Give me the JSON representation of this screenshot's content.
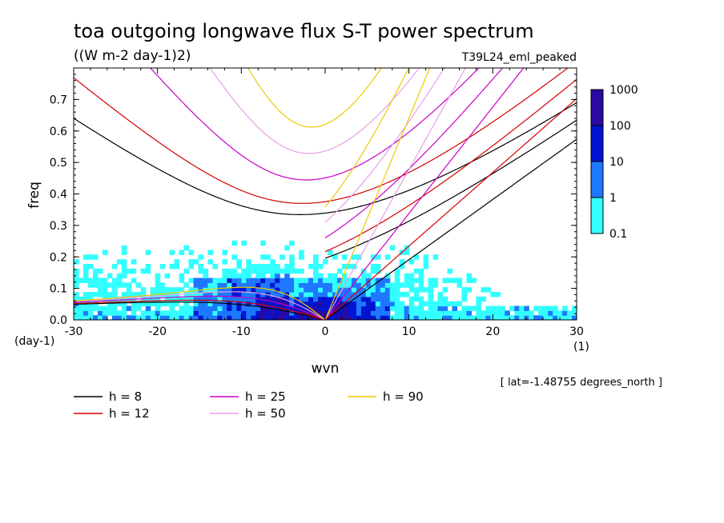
{
  "chart_data": {
    "type": "heatmap",
    "title": "toa outgoing longwave flux S-T power spectrum",
    "units": "((W m-2 day-1)2)",
    "run_label": "T39L24_eml_peaked",
    "xlabel": "wvn",
    "x_unit": "(1)",
    "ylabel": "freq",
    "y_unit": "(day-1)",
    "xlim": [
      -30,
      30
    ],
    "ylim": [
      0,
      0.8
    ],
    "x_ticks": [
      "-30",
      "-20",
      "-10",
      "0",
      "10",
      "20",
      "30"
    ],
    "y_ticks": [
      "0.0",
      "0.1",
      "0.2",
      "0.3",
      "0.4",
      "0.5",
      "0.6",
      "0.7"
    ],
    "location_note": "[ lat=-1.48755 degrees_north ]",
    "colorbar": {
      "levels": [
        "0.1",
        "1",
        "10",
        "100",
        "1000"
      ],
      "colors": [
        "#33ffff",
        "#1e78ff",
        "#0014d2",
        "#2a0aa0"
      ]
    },
    "contours": [
      {
        "label": "h =  8",
        "h": 8,
        "color": "#000000"
      },
      {
        "label": "h = 12",
        "h": 12,
        "color": "#d20000"
      },
      {
        "label": "h = 25",
        "h": 25,
        "color": "#c800c8"
      },
      {
        "label": "h = 50",
        "h": 50,
        "color": "#e6a0e6"
      },
      {
        "label": "h = 90",
        "h": 90,
        "color": "#f0c800"
      }
    ],
    "grid": false,
    "legend_position": "bottom-left"
  }
}
